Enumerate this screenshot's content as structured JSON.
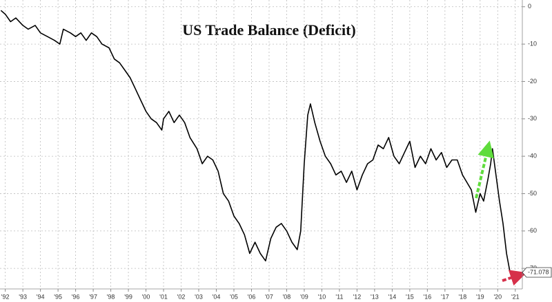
{
  "chart_data": {
    "type": "line",
    "title": "US Trade Balance (Deficit)",
    "x": [
      1991.75,
      1992.0,
      1992.3,
      1992.6,
      1993.0,
      1993.3,
      1993.7,
      1994.0,
      1994.4,
      1994.8,
      1995.1,
      1995.3,
      1995.7,
      1996.0,
      1996.3,
      1996.6,
      1996.9,
      1997.2,
      1997.5,
      1997.9,
      1998.2,
      1998.5,
      1998.8,
      1999.1,
      1999.4,
      1999.7,
      2000.0,
      2000.3,
      2000.6,
      2000.9,
      2001.0,
      2001.3,
      2001.6,
      2001.9,
      2002.2,
      2002.5,
      2002.9,
      2003.2,
      2003.5,
      2003.8,
      2004.1,
      2004.4,
      2004.7,
      2005.0,
      2005.3,
      2005.6,
      2005.9,
      2006.2,
      2006.5,
      2006.8,
      2007.1,
      2007.4,
      2007.7,
      2008.0,
      2008.3,
      2008.6,
      2008.8,
      2009.0,
      2009.2,
      2009.35,
      2009.6,
      2009.9,
      2010.2,
      2010.5,
      2010.8,
      2011.1,
      2011.4,
      2011.7,
      2012.0,
      2012.3,
      2012.6,
      2012.9,
      2013.2,
      2013.5,
      2013.8,
      2014.1,
      2014.4,
      2014.7,
      2015.0,
      2015.3,
      2015.6,
      2015.9,
      2016.2,
      2016.5,
      2016.8,
      2017.1,
      2017.4,
      2017.7,
      2018.0,
      2018.25,
      2018.5,
      2018.75,
      2019.0,
      2019.2,
      2019.45,
      2019.6,
      2019.7,
      2019.9,
      2020.1,
      2020.3,
      2020.5,
      2020.7
    ],
    "series": [
      {
        "name": "US Trade Balance",
        "color": "#000000",
        "values": [
          -1,
          -2,
          -4,
          -3,
          -5,
          -6,
          -5,
          -7,
          -8,
          -9,
          -10,
          -6,
          -7,
          -8,
          -7,
          -9,
          -7,
          -8,
          -10,
          -11,
          -14,
          -15,
          -17,
          -19,
          -22,
          -25,
          -28,
          -30,
          -31,
          -33,
          -30,
          -28,
          -31,
          -29,
          -31,
          -35,
          -38,
          -42,
          -40,
          -41,
          -44,
          -50,
          -52,
          -56,
          -58,
          -61,
          -66,
          -63,
          -66,
          -68,
          -62,
          -59,
          -58,
          -60,
          -63,
          -65,
          -60,
          -42,
          -29,
          -26,
          -31,
          -36,
          -40,
          -42,
          -45,
          -44,
          -47,
          -44,
          -49,
          -45,
          -42,
          -41,
          -37,
          -38,
          -35,
          -40,
          -42,
          -39,
          -36,
          -43,
          -40,
          -42,
          -38,
          -41,
          -39,
          -43,
          -41,
          -41,
          -45,
          -47,
          -49,
          -55,
          -50,
          -52,
          -46,
          -42,
          -38,
          -45,
          -52,
          -58,
          -66,
          -71.078
        ]
      }
    ],
    "xlim": [
      1991.7,
      2021.4
    ],
    "xticks": [
      {
        "value": 1992,
        "label": "'92"
      },
      {
        "value": 1993,
        "label": "'93"
      },
      {
        "value": 1994,
        "label": "'94"
      },
      {
        "value": 1995,
        "label": "'95"
      },
      {
        "value": 1996,
        "label": "'96"
      },
      {
        "value": 1997,
        "label": "'97"
      },
      {
        "value": 1998,
        "label": "'98"
      },
      {
        "value": 1999,
        "label": "'99"
      },
      {
        "value": 2000,
        "label": "'00"
      },
      {
        "value": 2001,
        "label": "'01"
      },
      {
        "value": 2002,
        "label": "'02"
      },
      {
        "value": 2003,
        "label": "'03"
      },
      {
        "value": 2004,
        "label": "'04"
      },
      {
        "value": 2005,
        "label": "'05"
      },
      {
        "value": 2006,
        "label": "'06"
      },
      {
        "value": 2007,
        "label": "'07"
      },
      {
        "value": 2008,
        "label": "'08"
      },
      {
        "value": 2009,
        "label": "'09"
      },
      {
        "value": 2010,
        "label": "'10"
      },
      {
        "value": 2011,
        "label": "'11"
      },
      {
        "value": 2012,
        "label": "'12"
      },
      {
        "value": 2013,
        "label": "'13"
      },
      {
        "value": 2014,
        "label": "'14"
      },
      {
        "value": 2015,
        "label": "'15"
      },
      {
        "value": 2016,
        "label": "'16"
      },
      {
        "value": 2017,
        "label": "'17"
      },
      {
        "value": 2018,
        "label": "'18"
      },
      {
        "value": 2019,
        "label": "'19"
      },
      {
        "value": 2020,
        "label": "'20"
      },
      {
        "value": 2021,
        "label": "'21"
      }
    ],
    "ylim": [
      -75.5,
      1.8
    ],
    "yticks": [
      0,
      -10,
      -20,
      -30,
      -40,
      -50,
      -60,
      -70
    ],
    "grid": true
  }
}
